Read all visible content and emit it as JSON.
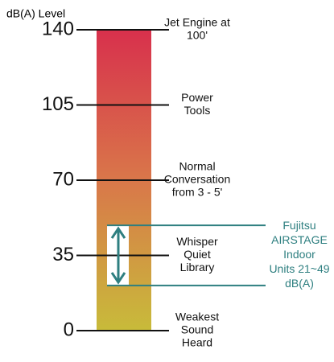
{
  "axis_label": "dB(A) Level",
  "scale": {
    "min": 0,
    "max": 140,
    "ticks": [
      0,
      35,
      70,
      105,
      140
    ]
  },
  "levels": [
    {
      "value": 140,
      "lines": [
        "Jet Engine at",
        "100'"
      ]
    },
    {
      "value": 105,
      "lines": [
        "Power",
        "Tools"
      ]
    },
    {
      "value": 70,
      "lines": [
        "Normal",
        "Conversation",
        "from 3 - 5'"
      ]
    },
    {
      "value": 35,
      "lines": [
        "Whisper",
        "Quiet",
        "Library"
      ]
    },
    {
      "value": 0,
      "lines": [
        "Weakest",
        "Sound",
        "Heard"
      ]
    }
  ],
  "range": {
    "low": 21,
    "high": 49,
    "lines": [
      "Fujitsu",
      "AIRSTAGE",
      "Indoor",
      "Units 21~49",
      "dB(A)"
    ]
  }
}
